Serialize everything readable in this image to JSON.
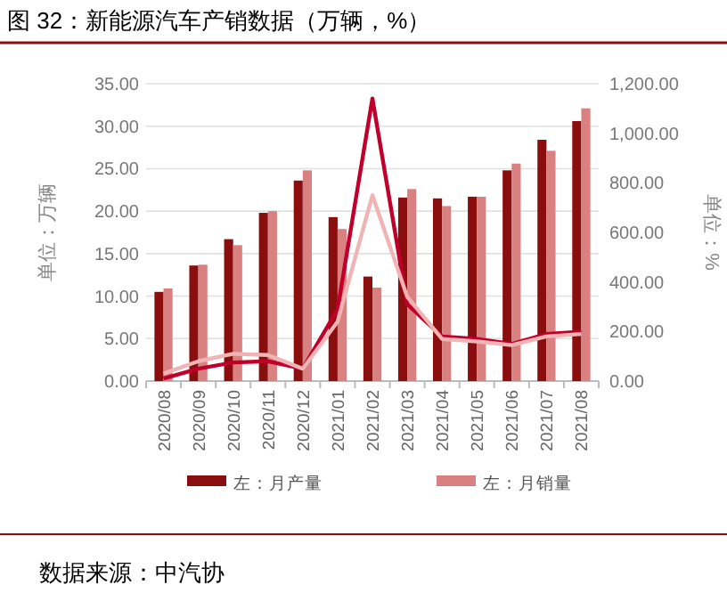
{
  "chart_data": {
    "type": "bar",
    "title": "图 32：新能源汽车产销数据（万辆，%）",
    "categories": [
      "2020/08",
      "2020/09",
      "2020/10",
      "2020/11",
      "2020/12",
      "2021/01",
      "2021/02",
      "2021/03",
      "2021/04",
      "2021/05",
      "2021/06",
      "2021/07",
      "2021/08"
    ],
    "series": [
      {
        "name": "左：月产量",
        "color": "#8b0e0e",
        "values": [
          10.5,
          13.6,
          16.7,
          19.8,
          23.6,
          19.3,
          12.3,
          21.6,
          21.5,
          21.7,
          24.8,
          28.4,
          30.6
        ]
      },
      {
        "name": "左：月销量",
        "color": "#d98080",
        "values": [
          10.9,
          13.7,
          16.0,
          20.0,
          24.8,
          17.9,
          11.0,
          22.6,
          20.6,
          21.7,
          25.6,
          27.1,
          32.1
        ]
      },
      {
        "type": "line",
        "axis": "y2",
        "color": "#c0002a",
        "values": [
          10,
          50,
          75,
          80,
          50,
          290,
          1140,
          310,
          180,
          170,
          150,
          190,
          200
        ]
      },
      {
        "type": "line",
        "axis": "y2",
        "color": "#f0b4b4",
        "values": [
          30,
          80,
          110,
          105,
          50,
          240,
          750,
          340,
          170,
          160,
          145,
          180,
          190
        ]
      }
    ],
    "ylabel": "单位：万辆",
    "y2label": "单位：%",
    "ylim": [
      0,
      35
    ],
    "yticks": [
      {
        "value": 0,
        "label": "0.00"
      },
      {
        "value": 5,
        "label": "5.00"
      },
      {
        "value": 10,
        "label": "10.00"
      },
      {
        "value": 15,
        "label": "15.00"
      },
      {
        "value": 20,
        "label": "20.00"
      },
      {
        "value": 25,
        "label": "25.00"
      },
      {
        "value": 30,
        "label": "30.00"
      },
      {
        "value": 35,
        "label": "35.00"
      }
    ],
    "y2lim": [
      0,
      1200
    ],
    "y2ticks": [
      {
        "value": 0,
        "label": "0.00"
      },
      {
        "value": 200,
        "label": "200.00"
      },
      {
        "value": 400,
        "label": "400.00"
      },
      {
        "value": 600,
        "label": "600.00"
      },
      {
        "value": 800,
        "label": "800.00"
      },
      {
        "value": 1000,
        "label": "1,000.00"
      },
      {
        "value": 1200,
        "label": "1,200.00"
      }
    ],
    "grid": "y",
    "legend": "bottom",
    "annotations": [
      "数据来源：中汽协"
    ]
  }
}
